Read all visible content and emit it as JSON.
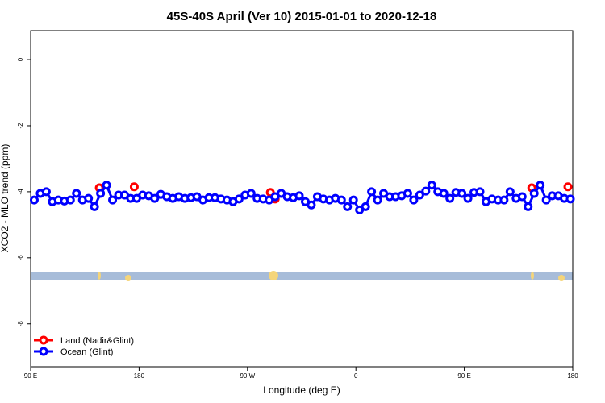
{
  "chart_data": {
    "type": "line",
    "title": "45S-40S April (Ver 10)   2015-01-01 to 2020-12-18",
    "x_label": "Longitude (deg E)",
    "y_label": "XCO2 - MLO trend (ppm)",
    "xlim": [
      90,
      540
    ],
    "ylim": [
      -9.3,
      0.88
    ],
    "xticks": [
      {
        "value": 90,
        "label": "90 E"
      },
      {
        "value": 180,
        "label": "180"
      },
      {
        "value": 270,
        "label": "90 W"
      },
      {
        "value": 360,
        "label": "0"
      },
      {
        "value": 450,
        "label": "90 E"
      },
      {
        "value": 540,
        "label": "180"
      }
    ],
    "yticks": [
      0,
      -2,
      -4,
      -6,
      -8
    ],
    "series": [
      {
        "name": "Land (Nadir&Glint)",
        "color": "#ff0000",
        "x": [
          147,
          176,
          289,
          293,
          506,
          536
        ],
        "values": [
          -3.88,
          -3.85,
          -4.02,
          -4.22,
          -3.88,
          -3.85
        ]
      },
      {
        "name": "Ocean (Glint)",
        "color": "#0000ff",
        "x": [
          93,
          98,
          103,
          108,
          113,
          118,
          123,
          128,
          133,
          138,
          143,
          148,
          153,
          158,
          163,
          168,
          173,
          178,
          183,
          188,
          193,
          198,
          203,
          208,
          213,
          218,
          223,
          228,
          233,
          238,
          243,
          248,
          253,
          258,
          263,
          268,
          273,
          278,
          283,
          288,
          293,
          298,
          303,
          308,
          313,
          318,
          323,
          328,
          333,
          338,
          343,
          348,
          353,
          358,
          363,
          368,
          373,
          378,
          383,
          388,
          393,
          398,
          403,
          408,
          413,
          418,
          423,
          428,
          433,
          438,
          443,
          448,
          453,
          458,
          463,
          468,
          473,
          478,
          483,
          488,
          493,
          498,
          503,
          508,
          513,
          518,
          523,
          528,
          533,
          538
        ],
        "values": [
          -4.25,
          -4.05,
          -4.0,
          -4.3,
          -4.25,
          -4.28,
          -4.25,
          -4.05,
          -4.25,
          -4.2,
          -4.45,
          -4.05,
          -3.8,
          -4.25,
          -4.1,
          -4.1,
          -4.2,
          -4.2,
          -4.1,
          -4.12,
          -4.2,
          -4.08,
          -4.15,
          -4.2,
          -4.15,
          -4.2,
          -4.18,
          -4.15,
          -4.25,
          -4.18,
          -4.18,
          -4.22,
          -4.25,
          -4.3,
          -4.22,
          -4.1,
          -4.05,
          -4.2,
          -4.22,
          -4.25,
          -4.15,
          -4.05,
          -4.15,
          -4.18,
          -4.12,
          -4.3,
          -4.4,
          -4.15,
          -4.22,
          -4.25,
          -4.2,
          -4.25,
          -4.45,
          -4.25,
          -4.55,
          -4.45,
          -4.0,
          -4.25,
          -4.05,
          -4.15,
          -4.15,
          -4.12,
          -4.05,
          -4.25,
          -4.1,
          -3.98,
          -3.8,
          -4.0,
          -4.05,
          -4.2,
          -4.02,
          -4.05,
          -4.2,
          -4.02,
          -4.0,
          -4.3,
          -4.22,
          -4.25,
          -4.25,
          -4.0,
          -4.2,
          -4.15,
          -4.45,
          -4.05,
          -3.8,
          -4.25,
          -4.12,
          -4.12,
          -4.2,
          -4.22
        ]
      }
    ]
  }
}
